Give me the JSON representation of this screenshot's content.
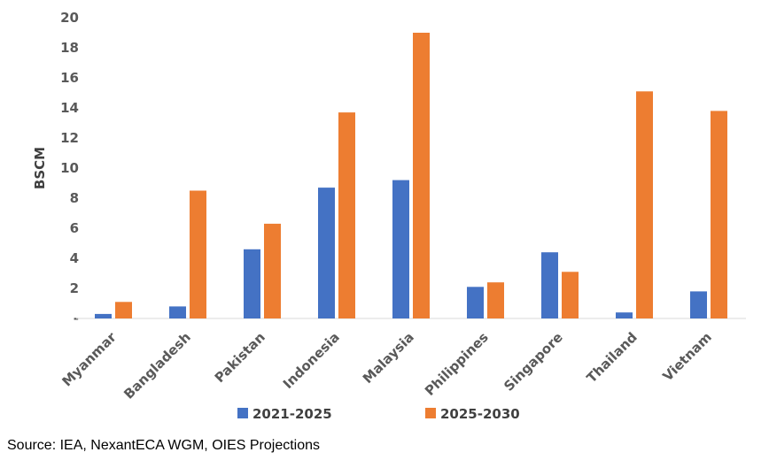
{
  "chart_data": {
    "type": "bar",
    "categories": [
      "Myanmar",
      "Bangladesh",
      "Pakistan",
      "Indonesia",
      "Malaysia",
      "Philippines",
      "Singapore",
      "Thailand",
      "Vietnam"
    ],
    "series": [
      {
        "name": "2021-2025",
        "color": "#4472C4",
        "values": [
          0.3,
          0.8,
          4.6,
          8.7,
          9.2,
          2.1,
          4.4,
          0.4,
          1.8
        ]
      },
      {
        "name": "2025-2030",
        "color": "#ED7D31",
        "values": [
          1.1,
          8.5,
          6.3,
          13.7,
          19.0,
          2.4,
          3.1,
          15.1,
          13.8
        ]
      }
    ],
    "ylabel": "BSCM",
    "ylim": [
      0,
      20
    ],
    "yticks": [
      "-",
      "2",
      "4",
      "6",
      "8",
      "10",
      "12",
      "14",
      "16",
      "18",
      "20"
    ],
    "grid": false,
    "legend_position": "bottom"
  },
  "source_text": "Source: IEA, NexantECA WGM, OIES Projections"
}
